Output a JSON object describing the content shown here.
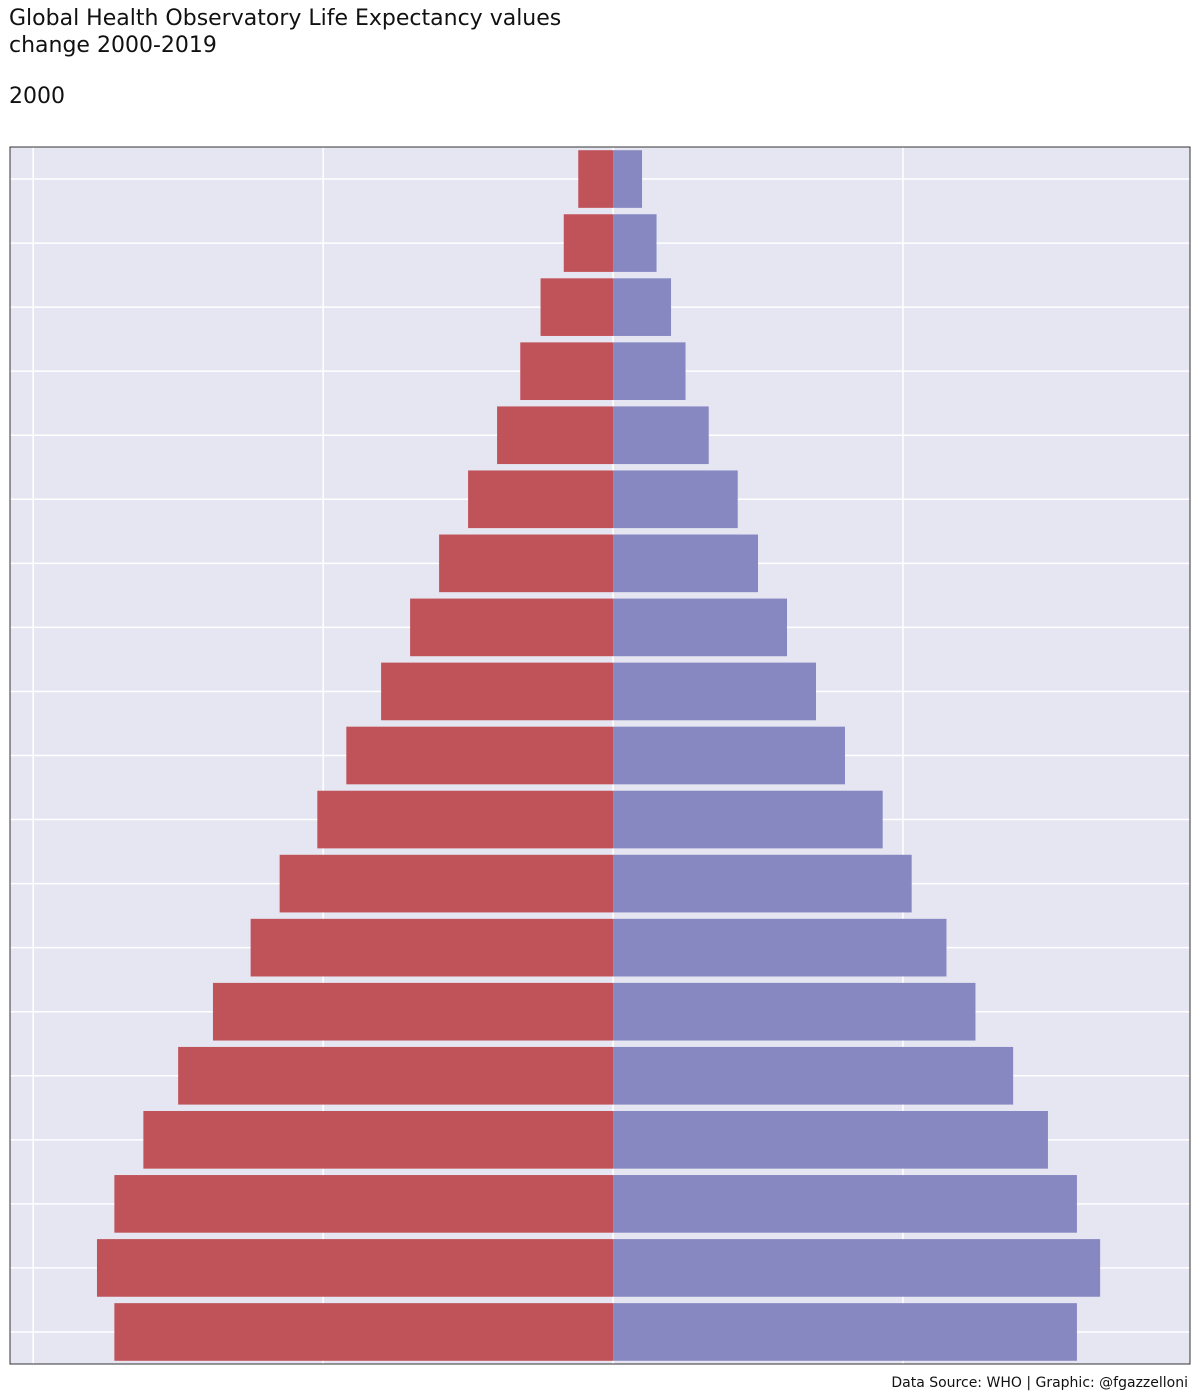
{
  "chart_data": {
    "type": "pyramid",
    "title": [
      "Global Health Observatory Life Expectancy values",
      "change 2000-2019"
    ],
    "subtitle": "2000",
    "caption": "Data Source: WHO | Graphic: @fgazzelloni",
    "categories": [
      null,
      null,
      null,
      null,
      null,
      null,
      null,
      null,
      null,
      null,
      null,
      null,
      null,
      null,
      null,
      null,
      null,
      null,
      null
    ],
    "series": [
      {
        "color": "#c0535a",
        "values": [
          -1.2,
          -1.7,
          -2.5,
          -3.2,
          -4.0,
          -5.0,
          -6.0,
          -7.0,
          -8.0,
          -9.2,
          -10.2,
          -11.5,
          -12.5,
          -13.8,
          -15.0,
          -16.2,
          -17.2,
          -17.8,
          -17.2
        ]
      },
      {
        "color": "#8787c1",
        "values": [
          1.0,
          1.5,
          2.0,
          2.5,
          3.3,
          4.3,
          5.0,
          6.0,
          7.0,
          8.0,
          9.3,
          10.3,
          11.5,
          12.5,
          13.8,
          15.0,
          16.0,
          16.8,
          16.0
        ]
      }
    ],
    "xlim": [
      -20.8,
      19.9
    ],
    "xticks": [
      -20,
      -10,
      0,
      10
    ],
    "grid": true,
    "panel_color": "#e5e6f2"
  }
}
